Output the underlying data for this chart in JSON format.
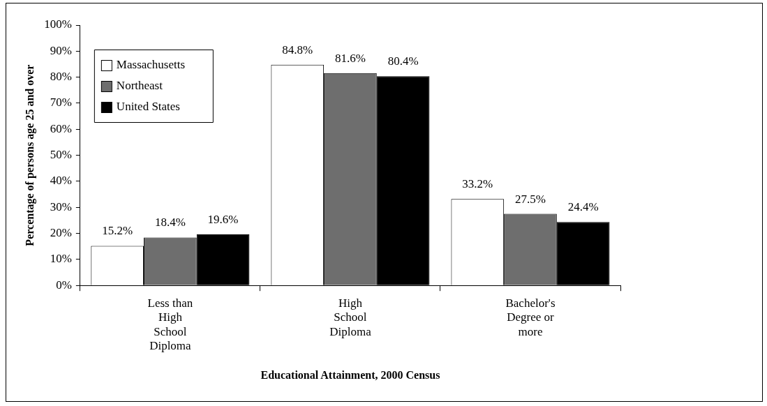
{
  "chart_data": {
    "type": "bar",
    "xlabel": "Educational Attainment, 2000 Census",
    "ylabel": "Percentage of persons age 25 and over",
    "categories": [
      "Less than High School Diploma",
      "High School Diploma",
      "Bachelor's Degree or more"
    ],
    "series": [
      {
        "name": "Massachusetts",
        "color": "#ffffff",
        "values": [
          15.2,
          84.8,
          33.2
        ],
        "value_labels": [
          "15.2%",
          "84.8%",
          "33.2%"
        ]
      },
      {
        "name": "Northeast",
        "color": "#6e6e6e",
        "values": [
          18.4,
          81.6,
          27.5
        ],
        "value_labels": [
          "18.4%",
          "81.6%",
          "27.5%"
        ]
      },
      {
        "name": "United States",
        "color": "#000000",
        "values": [
          19.6,
          80.4,
          24.4
        ],
        "value_labels": [
          "19.6%",
          "80.4%",
          "24.4%"
        ]
      }
    ],
    "ylim": [
      0,
      100
    ],
    "yticks": [
      {
        "value": 0,
        "label": "0%"
      },
      {
        "value": 10,
        "label": "10%"
      },
      {
        "value": 20,
        "label": "20%"
      },
      {
        "value": 30,
        "label": "30%"
      },
      {
        "value": 40,
        "label": "40%"
      },
      {
        "value": 50,
        "label": "50%"
      },
      {
        "value": 60,
        "label": "60%"
      },
      {
        "value": 70,
        "label": "70%"
      },
      {
        "value": 80,
        "label": "80%"
      },
      {
        "value": 90,
        "label": "90%"
      },
      {
        "value": 100,
        "label": "100%"
      }
    ],
    "grid": false,
    "legend": "top left"
  }
}
